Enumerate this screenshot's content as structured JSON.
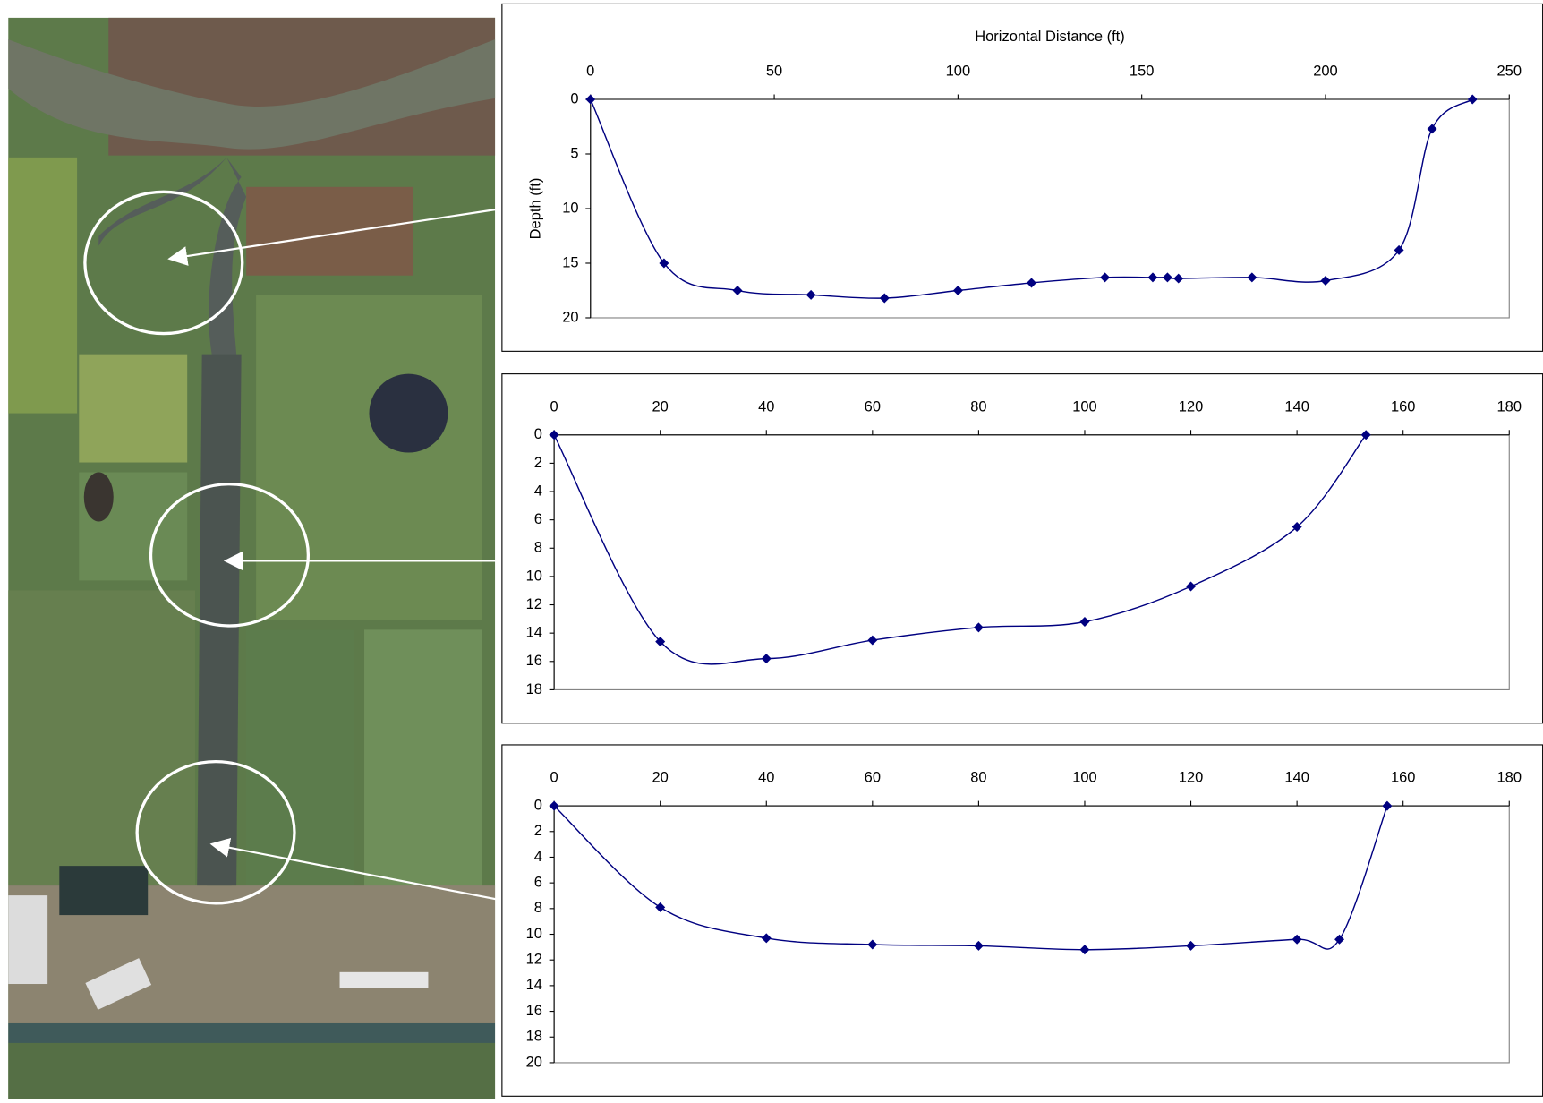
{
  "chart_data": [
    {
      "type": "line",
      "x_label": "Horizontal Distance (ft)",
      "y_label": "Depth (ft)",
      "x": [
        0,
        20,
        40,
        60,
        80,
        100,
        120,
        140,
        153,
        157,
        160,
        180,
        200,
        220,
        229,
        240
      ],
      "values": [
        0,
        15,
        17.5,
        17.9,
        18.2,
        17.5,
        16.8,
        16.3,
        16.3,
        16.3,
        16.4,
        16.3,
        16.6,
        13.8,
        2.7,
        0
      ],
      "color": "#000080",
      "marker": "diamond",
      "y_inverted": true,
      "grid": false,
      "xlim": [
        0,
        250
      ],
      "xticks": [
        0,
        50,
        100,
        150,
        200,
        250
      ],
      "ylim": [
        0,
        20
      ],
      "yticks": [
        0,
        5,
        10,
        15,
        20
      ]
    },
    {
      "type": "line",
      "x": [
        0,
        20,
        40,
        60,
        80,
        100,
        120,
        140,
        153
      ],
      "values": [
        0,
        14.6,
        15.8,
        14.5,
        13.6,
        13.2,
        10.7,
        6.5,
        0
      ],
      "color": "#000080",
      "marker": "diamond",
      "y_inverted": true,
      "grid": false,
      "xlim": [
        0,
        180
      ],
      "xticks": [
        0,
        20,
        40,
        60,
        80,
        100,
        120,
        140,
        160,
        180
      ],
      "ylim": [
        0,
        18
      ],
      "yticks": [
        0,
        2,
        4,
        6,
        8,
        10,
        12,
        14,
        16,
        18
      ]
    },
    {
      "type": "line",
      "x": [
        0,
        20,
        40,
        60,
        80,
        100,
        120,
        140,
        148,
        157
      ],
      "values": [
        0,
        7.9,
        10.3,
        10.8,
        10.9,
        11.2,
        10.9,
        10.4,
        10.4,
        0
      ],
      "color": "#000080",
      "marker": "diamond",
      "y_inverted": true,
      "grid": false,
      "xlim": [
        0,
        180
      ],
      "xticks": [
        0,
        20,
        40,
        60,
        80,
        100,
        120,
        140,
        160,
        180
      ],
      "ylim": [
        0,
        20
      ],
      "yticks": [
        0,
        2,
        4,
        6,
        8,
        10,
        12,
        14,
        16,
        18,
        20
      ]
    }
  ]
}
